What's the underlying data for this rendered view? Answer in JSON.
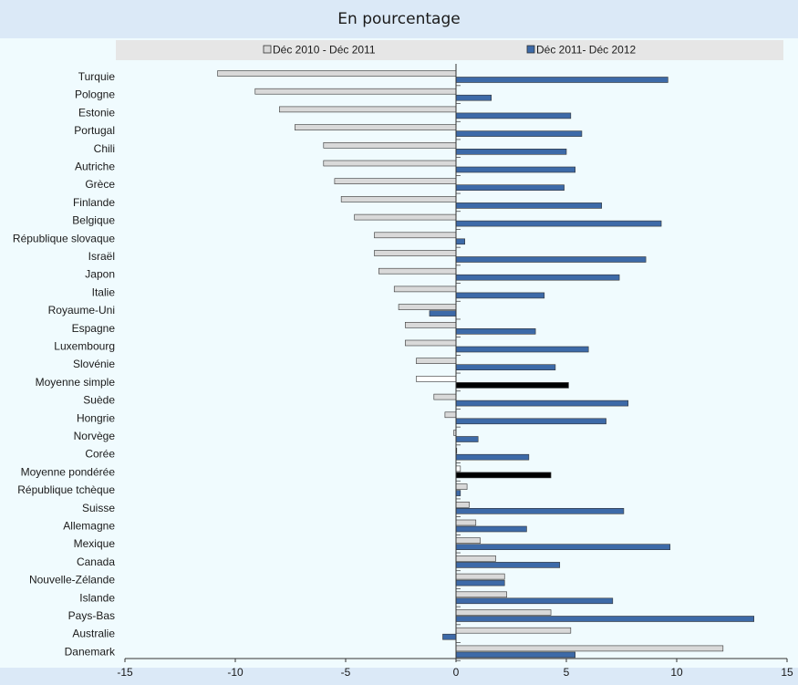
{
  "header": {
    "title": "En pourcentage"
  },
  "colors": {
    "series_1": "#d9d9d9",
    "series_2": "#3d6aa8",
    "highlight_1": "#ffffff",
    "highlight_2": "#000000",
    "plot_background": "#f0fbfe",
    "legend_background": "#e6e6e6"
  },
  "chart_data": {
    "type": "bar",
    "orientation": "horizontal",
    "title": "En pourcentage",
    "legend_position": "top",
    "grid": false,
    "xlim": [
      -15,
      15
    ],
    "xticks": [
      -15,
      -10,
      -5,
      0,
      5,
      10,
      15
    ],
    "highlighted_categories": [
      "Moyenne simple",
      "Moyenne pondérée"
    ],
    "categories": [
      "Turquie",
      "Pologne",
      "Estonie",
      "Portugal",
      "Chili",
      "Autriche",
      "Grèce",
      "Finlande",
      "Belgique",
      "République slovaque",
      "Israël",
      "Japon",
      "Italie",
      "Royaume-Uni",
      "Espagne",
      "Luxembourg",
      "Slovénie",
      "Moyenne simple",
      "Suède",
      "Hongrie",
      "Norvège",
      "Corée",
      "Moyenne pondérée",
      "République tchèque",
      "Suisse",
      "Allemagne",
      "Mexique",
      "Canada",
      "Nouvelle-Zélande",
      "Islande",
      "Pays-Bas",
      "Australie",
      "Danemark"
    ],
    "series": [
      {
        "name": "Déc 2010 - Déc 2011",
        "values": [
          -10.8,
          -9.1,
          -8.0,
          -7.3,
          -6.0,
          -6.0,
          -5.5,
          -5.2,
          -4.6,
          -3.7,
          -3.7,
          -3.5,
          -2.8,
          -2.6,
          -2.3,
          -2.3,
          -1.8,
          -1.8,
          -1.0,
          -0.5,
          -0.1,
          0.0,
          0.2,
          0.5,
          0.6,
          0.9,
          1.1,
          1.8,
          2.2,
          2.3,
          4.3,
          5.2,
          12.1
        ]
      },
      {
        "name": "Déc 2011- Déc 2012",
        "values": [
          9.6,
          1.6,
          5.2,
          5.7,
          5.0,
          5.4,
          4.9,
          6.6,
          9.3,
          0.4,
          8.6,
          7.4,
          4.0,
          -1.2,
          3.6,
          6.0,
          4.5,
          5.1,
          7.8,
          6.8,
          1.0,
          3.3,
          4.3,
          0.2,
          7.6,
          3.2,
          9.7,
          4.7,
          2.2,
          7.1,
          13.5,
          -0.6,
          5.4
        ]
      }
    ]
  }
}
